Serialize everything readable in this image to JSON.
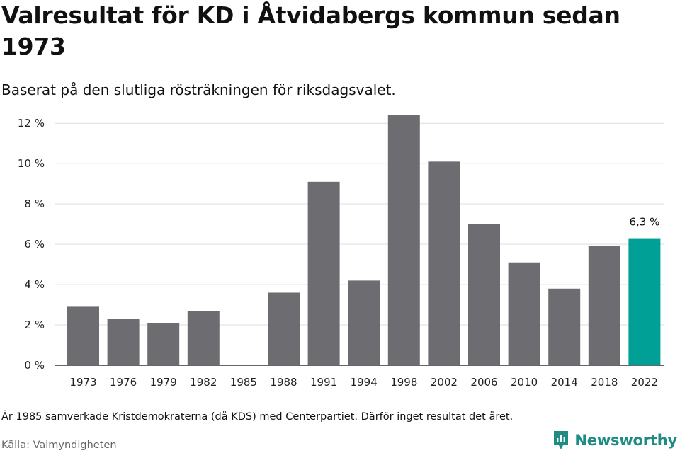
{
  "header": {
    "title": "Valresultat för KD i Åtvidabergs kommun sedan 1973",
    "subtitle": "Baserat på den slutliga rösträkningen för riksdagsvalet."
  },
  "footer": {
    "note": "År 1985 samverkade Kristdemokraterna (då KDS) med Centerpartiet. Därför inget resultat det året.",
    "source": "Källa: Valmyndigheten",
    "brand": "Newsworthy"
  },
  "colors": {
    "bar": "#6d6c71",
    "highlight": "#00a097",
    "grid": "#dddddd",
    "axis": "#333333",
    "brand": "#1e8c84"
  },
  "chart_data": {
    "type": "bar",
    "title": "Valresultat för KD i Åtvidabergs kommun sedan 1973",
    "xlabel": "",
    "ylabel": "",
    "categories": [
      "1973",
      "1976",
      "1979",
      "1982",
      "1985",
      "1988",
      "1991",
      "1994",
      "1998",
      "2002",
      "2006",
      "2010",
      "2014",
      "2018",
      "2022"
    ],
    "values": [
      2.9,
      2.3,
      2.1,
      2.7,
      null,
      3.6,
      9.1,
      4.2,
      12.4,
      10.1,
      7.0,
      5.1,
      3.8,
      5.9,
      6.3
    ],
    "ylim": [
      0,
      12.5
    ],
    "yticks": [
      0,
      2,
      4,
      6,
      8,
      10,
      12
    ],
    "ytick_labels": [
      "0 %",
      "2 %",
      "4 %",
      "6 %",
      "8 %",
      "10 %",
      "12 %"
    ],
    "highlight_index": 14,
    "annotations": [
      {
        "category": "2022",
        "label": "6,3 %"
      }
    ],
    "grid": true
  }
}
